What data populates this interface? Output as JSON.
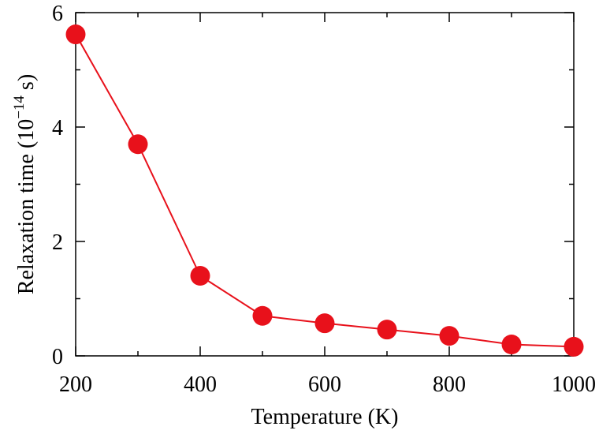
{
  "chart_data": {
    "type": "line",
    "title": "",
    "xlabel": "Temperature (K)",
    "ylabel": {
      "main": "Relaxation time (10",
      "exponent": "−14",
      "unit": " s)"
    },
    "xlim": [
      200,
      1000
    ],
    "ylim": [
      0,
      6
    ],
    "xticks": [
      200,
      400,
      600,
      800,
      1000
    ],
    "yticks": [
      0,
      2,
      4,
      6
    ],
    "grid": false,
    "legend": "none",
    "series": [
      {
        "color": "#e8111b",
        "x": [
          200,
          300,
          400,
          500,
          600,
          700,
          800,
          900,
          1000
        ],
        "y": [
          5.62,
          3.7,
          1.4,
          0.7,
          0.57,
          0.46,
          0.35,
          0.2,
          0.16
        ]
      }
    ]
  }
}
